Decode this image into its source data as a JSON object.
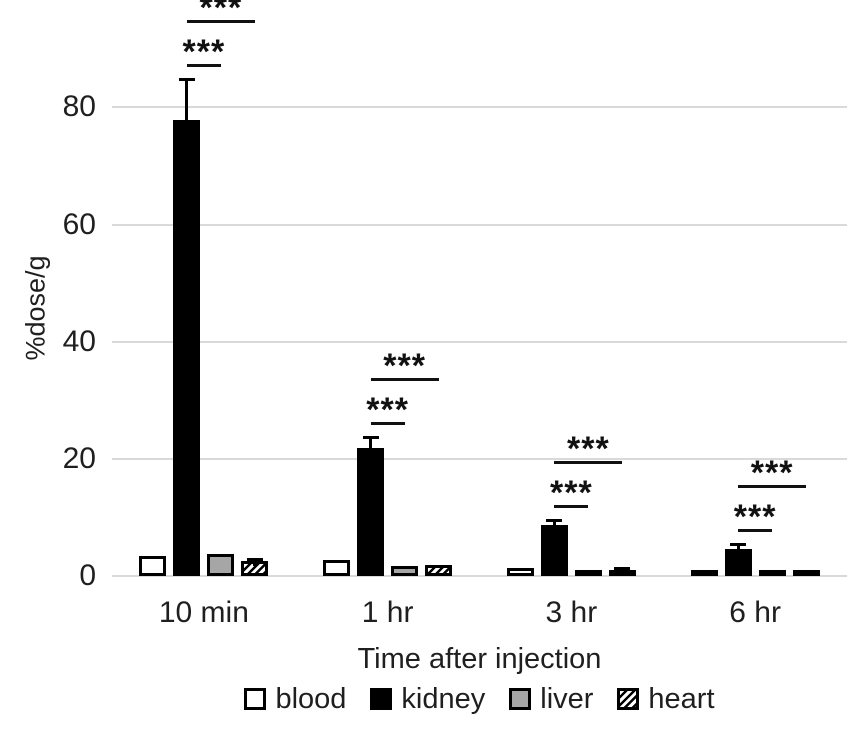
{
  "chart_data": {
    "type": "bar",
    "title": "",
    "xlabel": "Time after injection",
    "ylabel": "%dose/g",
    "categories": [
      "10 min",
      "1 hr",
      "3 hr",
      "6 hr"
    ],
    "yticks": [
      0,
      20,
      40,
      60,
      80
    ],
    "ylim": [
      0,
      98
    ],
    "grid": true,
    "legend_position": "bottom",
    "series": [
      {
        "name": "blood",
        "swatch": "white-outline",
        "values": [
          3.4,
          2.7,
          1.4,
          1.0
        ],
        "errors": [
          0,
          0,
          0,
          0
        ]
      },
      {
        "name": "kidney",
        "swatch": "solid-black",
        "values": [
          77.8,
          21.9,
          8.7,
          4.6
        ],
        "errors": [
          7.2,
          2.0,
          1.1,
          1.0
        ]
      },
      {
        "name": "liver",
        "swatch": "gray-fill",
        "values": [
          3.7,
          1.7,
          1.0,
          0.6
        ],
        "errors": [
          0,
          0,
          0,
          0
        ]
      },
      {
        "name": "heart",
        "swatch": "diagonal-hatch",
        "values": [
          2.6,
          1.9,
          1.0,
          0.7
        ],
        "errors": [
          0.5,
          0,
          0.6,
          0
        ]
      }
    ],
    "significance": [
      {
        "category": "10 min",
        "comparisons": [
          {
            "from": "kidney",
            "to": "liver",
            "label": "***"
          },
          {
            "from": "kidney",
            "to": "heart",
            "label": "***"
          }
        ]
      },
      {
        "category": "1 hr",
        "comparisons": [
          {
            "from": "kidney",
            "to": "liver",
            "label": "***"
          },
          {
            "from": "kidney",
            "to": "heart",
            "label": "***"
          }
        ]
      },
      {
        "category": "3 hr",
        "comparisons": [
          {
            "from": "kidney",
            "to": "liver",
            "label": "***"
          },
          {
            "from": "kidney",
            "to": "heart",
            "label": "***"
          }
        ]
      },
      {
        "category": "6 hr",
        "comparisons": [
          {
            "from": "kidney",
            "to": "liver",
            "label": "***"
          },
          {
            "from": "kidney",
            "to": "heart",
            "label": "***"
          }
        ]
      }
    ],
    "colors": {
      "bar_black": "#000000",
      "liver_gray": "#a6a6a6",
      "gridline": "#d9d9d9",
      "text": "#1f1f1f"
    }
  }
}
